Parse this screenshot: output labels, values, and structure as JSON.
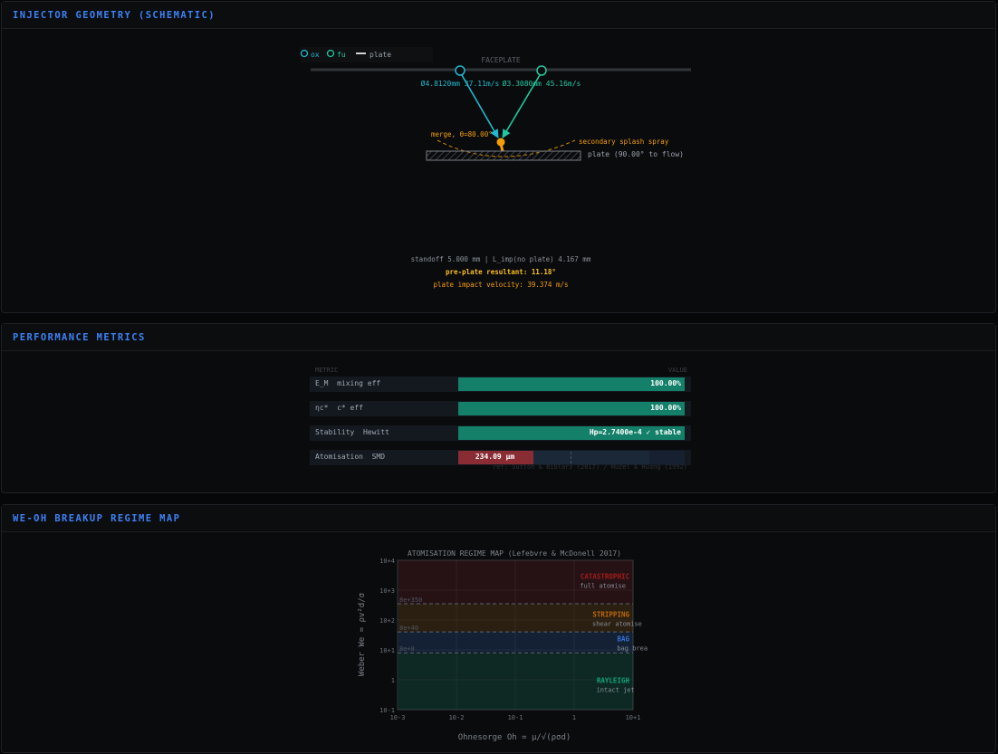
{
  "panels": {
    "geometry": {
      "title": "INJECTOR GEOMETRY (SCHEMATIC)",
      "legend": [
        "ox",
        "fu",
        "plate"
      ],
      "faceplate_label": "FACEPLATE",
      "ox_label": "Ø4.8120mm 37.11m/s",
      "fu_label": "Ø3.3080mm 45.16m/s",
      "merge_label": "merge, θ=80.00°",
      "splash_label": "secondary splash spray",
      "plate_label": "plate (90.00° to flow)",
      "standoff_text": "standoff 5.000 mm | L_imp(no plate) 4.167 mm",
      "resultant_text": "pre-plate resultant: 11.18°",
      "impact_text": "plate impact velocity: 39.374 m/s",
      "colors": {
        "ox": "#22b8cf",
        "fu": "#1fc8a0",
        "merge": "#f59e0b",
        "accent": "#3b82f6"
      }
    },
    "performance": {
      "title": "PERFORMANCE METRICS",
      "header_metric": "METRIC",
      "header_value": "VALUE",
      "rows": [
        {
          "label": "E_M  mixing eff",
          "value": "100.00%",
          "fraction": 1.0,
          "status": "good"
        },
        {
          "label": "ηc*  c* eff",
          "value": "100.00%",
          "fraction": 1.0,
          "status": "good"
        },
        {
          "label": "Stability  Hewitt",
          "value": "Hp=2.7400e-4  ✓ stable",
          "fraction": 1.0,
          "status": "good"
        },
        {
          "label": "Atomisation  SMD",
          "value": "234.09 μm",
          "fraction": 0.33,
          "status": "bad"
        }
      ],
      "reference": "ref: Sutton & Biblarz (2017) / Huzel & Huang (1992)"
    },
    "regime": {
      "title": "WE-OH BREAKUP REGIME MAP"
    }
  },
  "chart_data": {
    "type": "scatter",
    "title": "ATOMISATION REGIME MAP  (Lefebvre & McDonell 2017)",
    "xlabel": "Ohnesorge  Oh = μ/√(ρσd)",
    "ylabel": "Weber  We = ρv²d/σ",
    "x_scale": "log",
    "y_scale": "log",
    "xlim": [
      0.001,
      10
    ],
    "ylim": [
      0.1,
      10000
    ],
    "x_ticks": [
      "10-3",
      "10-2",
      "10-1",
      "1",
      "10+1"
    ],
    "y_ticks": [
      "10+4",
      "10+3",
      "10+2",
      "10+1",
      "1",
      "10-1"
    ],
    "boundaries": [
      {
        "label": "8e+350",
        "We": 350
      },
      {
        "label": "8e+40",
        "We": 40
      },
      {
        "label": "8e+8",
        "We": 8
      }
    ],
    "regions": [
      {
        "name": "CATASTROPHIC",
        "note": "full atomise",
        "We_min": 350,
        "We_max": 10000,
        "color": "#b91c1c"
      },
      {
        "name": "STRIPPING",
        "note": "shear atomise",
        "We_min": 40,
        "We_max": 350,
        "color": "#d97706"
      },
      {
        "name": "BAG",
        "note": "bag brea",
        "We_min": 8,
        "We_max": 40,
        "color": "#3b82f6"
      },
      {
        "name": "RAYLEIGH",
        "note": "intact jet",
        "We_min": 0.1,
        "We_max": 8,
        "color": "#10b981"
      }
    ],
    "grid": true
  }
}
